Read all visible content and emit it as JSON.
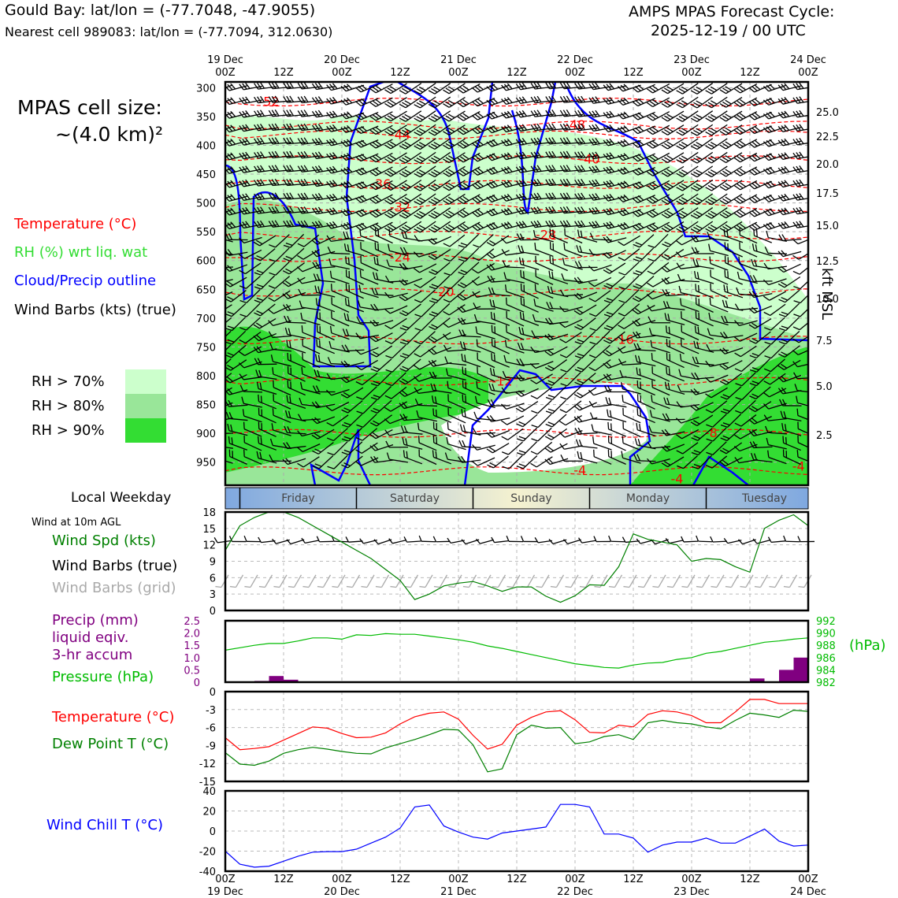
{
  "header": {
    "station_title": "Gould Bay: lat/lon = (-77.7048, -47.9055)",
    "nearest_cell": "Nearest cell 989083: lat/lon = (-77.7094, 312.0630)",
    "cycle_title": "AMPS MPAS Forecast Cycle:",
    "cycle_time": "2025-12-19 / 00 UTC"
  },
  "legend": {
    "cell_size_label": "MPAS cell size:",
    "cell_size_value": "~(4.0 km)²",
    "temperature": "Temperature (°C)",
    "rh": "RH (%) wrt liq. wat",
    "cloud": "Cloud/Precip outline",
    "barbs": "Wind Barbs (kts) (true)",
    "rh70": "RH > 70%",
    "rh80": "RH > 80%",
    "rh90": "RH > 90%",
    "local_weekday": "Local Weekday",
    "wind_10m": "Wind at 10m AGL",
    "wind_spd": "Wind Spd (kts)",
    "wind_barbs_true": "Wind Barbs (true)",
    "wind_barbs_grid": "Wind Barbs (grid)",
    "precip_1": "Precip (mm)",
    "precip_2": "liquid eqiv.",
    "precip_3": "3-hr accum",
    "pressure": "Pressure (hPa)",
    "pressure_unit": "(hPa)",
    "temp2": "Temperature (°C)",
    "dewpoint": "Dew Point T (°C)",
    "windchill": "Wind Chill T (°C)",
    "kft": "kft MSL"
  },
  "colors": {
    "rh70": "#ccffcc",
    "rh80": "#99e699",
    "rh90": "#33dd33",
    "temp": "#ff0000",
    "dew": "#008000",
    "cloud": "#0000ff",
    "precip": "#800080",
    "windchill": "#0000ff",
    "wind": "#008000"
  },
  "chart_data": [
    {
      "type": "time-height cross section",
      "x_top_ticks": [
        {
          "t": 0,
          "label": "19 Dec\n00Z"
        },
        {
          "t": 12,
          "label": "12Z"
        },
        {
          "t": 24,
          "label": "20 Dec\n00Z"
        },
        {
          "t": 36,
          "label": "12Z"
        },
        {
          "t": 48,
          "label": "21 Dec\n00Z"
        },
        {
          "t": 60,
          "label": "12Z"
        },
        {
          "t": 72,
          "label": "22 Dec\n00Z"
        },
        {
          "t": 84,
          "label": "12Z"
        },
        {
          "t": 96,
          "label": "23 Dec\n00Z"
        },
        {
          "t": 108,
          "label": "12Z"
        },
        {
          "t": 120,
          "label": "24 Dec\n00Z"
        }
      ],
      "pressure_levels": [
        300,
        350,
        400,
        450,
        500,
        550,
        600,
        650,
        700,
        750,
        800,
        850,
        900,
        950
      ],
      "height_ticks_kft": [
        "25.0",
        "22.5",
        "20.0",
        "17.5",
        "15.0",
        "12.5",
        "10.0",
        "7.5",
        "5.0",
        "2.5"
      ],
      "temperature_contours": [
        {
          "label": "-52",
          "t": 9,
          "p": 325
        },
        {
          "label": "-48",
          "t": 72,
          "p": 365
        },
        {
          "label": "-44",
          "t": 36,
          "p": 382
        },
        {
          "label": "-40",
          "t": 75,
          "p": 425
        },
        {
          "label": "-36",
          "t": 32,
          "p": 468
        },
        {
          "label": "-32",
          "t": 36,
          "p": 508
        },
        {
          "label": "-28",
          "t": 66,
          "p": 556
        },
        {
          "label": "-24",
          "t": 36,
          "p": 595
        },
        {
          "label": "-20",
          "t": 45,
          "p": 655
        },
        {
          "label": "-16",
          "t": 82,
          "p": 738
        },
        {
          "label": "-12",
          "t": 57,
          "p": 810
        },
        {
          "label": "-8",
          "t": 100,
          "p": 900
        },
        {
          "label": "-4",
          "t": 73,
          "p": 965
        },
        {
          "label": "-4",
          "t": 118,
          "p": 958
        },
        {
          "label": "-4",
          "t": 93,
          "p": 980
        }
      ],
      "weekdays": [
        "Friday",
        "Saturday",
        "Sunday",
        "Monday",
        "Tuesday"
      ]
    },
    {
      "type": "line",
      "title": "Wind at 10m AGL",
      "ylim": [
        0,
        18
      ],
      "yticks": [
        "0",
        "3",
        "6",
        "9",
        "12",
        "15",
        "18"
      ],
      "x_hours": [
        0,
        3,
        6,
        9,
        12,
        15,
        18,
        21,
        24,
        27,
        30,
        33,
        36,
        39,
        42,
        45,
        48,
        51,
        54,
        57,
        60,
        63,
        66,
        69,
        72,
        75,
        78,
        81,
        84,
        87,
        90,
        93,
        96,
        99,
        102,
        105,
        108,
        111,
        114,
        117,
        120
      ],
      "series": [
        {
          "name": "Wind Spd (kts)",
          "values": [
            11,
            15.5,
            17,
            18,
            18,
            17,
            15.5,
            14,
            12.5,
            11,
            9.5,
            7.5,
            5.5,
            2,
            3,
            4.5,
            5,
            5.3,
            4.5,
            3.5,
            4.3,
            4.3,
            2.6,
            1.5,
            2.7,
            4.7,
            4.6,
            8,
            14,
            13,
            12.5,
            12,
            9,
            9.5,
            9.3,
            8,
            7,
            15,
            16.5,
            17.5,
            15.5
          ]
        }
      ]
    },
    {
      "type": "bar+line",
      "precip_ylim": [
        0,
        2.5
      ],
      "precip_yticks": [
        "0",
        "0.5",
        "1.0",
        "1.5",
        "2.0",
        "2.5"
      ],
      "pressure_ylim": [
        982,
        992
      ],
      "pressure_yticks": [
        "982",
        "984",
        "986",
        "988",
        "990",
        "992"
      ],
      "x_hours": [
        0,
        3,
        6,
        9,
        12,
        15,
        18,
        21,
        24,
        27,
        30,
        33,
        36,
        39,
        42,
        45,
        48,
        51,
        54,
        57,
        60,
        63,
        66,
        69,
        72,
        75,
        78,
        81,
        84,
        87,
        90,
        93,
        96,
        99,
        102,
        105,
        108,
        111,
        114,
        117,
        120
      ],
      "series": [
        {
          "name": "Pressure (hPa)",
          "values": [
            987.2,
            987.6,
            988,
            988.3,
            988.3,
            988.7,
            989.2,
            989.2,
            989,
            989.7,
            989.6,
            989.9,
            989.8,
            989.8,
            989.5,
            989.2,
            988.9,
            988.5,
            987.9,
            987.5,
            987,
            986.5,
            986,
            985.5,
            985,
            984.7,
            984.4,
            984.3,
            984.8,
            985.1,
            985.2,
            985.7,
            986,
            986.7,
            987,
            987.5,
            988,
            988.5,
            988.7,
            989,
            989.2
          ]
        },
        {
          "name": "Precip (mm)",
          "values": [
            0,
            0,
            0,
            0.05,
            0.25,
            0.1,
            0,
            0,
            0,
            0,
            0,
            0,
            0,
            0,
            0,
            0,
            0,
            0,
            0,
            0,
            0,
            0,
            0,
            0,
            0,
            0,
            0,
            0,
            0,
            0,
            0,
            0,
            0,
            0,
            0,
            0,
            0,
            0.15,
            0,
            0.5,
            1.0
          ]
        }
      ]
    },
    {
      "type": "line",
      "ylim": [
        -15,
        0
      ],
      "yticks": [
        "0",
        "-3",
        "-6",
        "-9",
        "-12",
        "-15"
      ],
      "x_hours": [
        0,
        3,
        6,
        9,
        12,
        15,
        18,
        21,
        24,
        27,
        30,
        33,
        36,
        39,
        42,
        45,
        48,
        51,
        54,
        57,
        60,
        63,
        66,
        69,
        72,
        75,
        78,
        81,
        84,
        87,
        90,
        93,
        96,
        99,
        102,
        105,
        108,
        111,
        114,
        117,
        120
      ],
      "series": [
        {
          "name": "Temperature (°C)",
          "values": [
            -7.7,
            -9.7,
            -9.5,
            -9.2,
            -8.1,
            -7,
            -5.9,
            -6.1,
            -7,
            -7.7,
            -7.6,
            -6.9,
            -5.4,
            -4.2,
            -3.6,
            -3.4,
            -4.6,
            -7.3,
            -9.6,
            -8.8,
            -5.6,
            -4.3,
            -3.4,
            -3.2,
            -4.7,
            -6.8,
            -6.9,
            -5.6,
            -5.9,
            -3.8,
            -3.2,
            -3.4,
            -4,
            -5.2,
            -5.2,
            -3.4,
            -1.3,
            -1.3,
            -2,
            -2,
            -2
          ]
        },
        {
          "name": "Dew Point T (°C)",
          "values": [
            -10.2,
            -12.1,
            -12.3,
            -11.6,
            -10.3,
            -9.7,
            -9.3,
            -9.6,
            -10,
            -10.3,
            -10.4,
            -9.4,
            -8.7,
            -8,
            -7.2,
            -6.3,
            -6.4,
            -8.9,
            -13.4,
            -12.9,
            -7.2,
            -5.6,
            -6.1,
            -6,
            -8.7,
            -8.4,
            -7.5,
            -7.2,
            -8,
            -5.2,
            -4.8,
            -5.2,
            -5.4,
            -5.9,
            -6.2,
            -4.8,
            -3.6,
            -3.9,
            -4.3,
            -3.1,
            -3.3
          ]
        }
      ]
    },
    {
      "type": "line",
      "ylim": [
        -40,
        40
      ],
      "yticks": [
        "40",
        "20",
        "0",
        "-20",
        "-40"
      ],
      "x_hours": [
        0,
        3,
        6,
        9,
        12,
        15,
        18,
        21,
        24,
        27,
        30,
        33,
        36,
        39,
        42,
        45,
        48,
        51,
        54,
        57,
        60,
        63,
        66,
        69,
        72,
        75,
        78,
        81,
        84,
        87,
        90,
        93,
        96,
        99,
        102,
        105,
        108,
        111,
        114,
        117,
        120
      ],
      "series": [
        {
          "name": "Wind Chill T (°C)",
          "values": [
            -20,
            -33,
            -36,
            -35,
            -30,
            -25,
            -21,
            -20.5,
            -20.5,
            -18,
            -12,
            -6,
            3,
            24,
            26,
            5,
            -1,
            -6,
            -8,
            -2,
            0,
            2,
            4,
            26.5,
            26.5,
            24,
            -3,
            -3,
            -7,
            -21,
            -14,
            -11,
            -11,
            -7,
            -12,
            -12,
            -5,
            2,
            -10,
            -15,
            -14
          ]
        }
      ],
      "x_bottom_ticks": [
        {
          "t": 0,
          "label": "00Z\n19 Dec"
        },
        {
          "t": 12,
          "label": "12Z"
        },
        {
          "t": 24,
          "label": "00Z\n20 Dec"
        },
        {
          "t": 36,
          "label": "12Z"
        },
        {
          "t": 48,
          "label": "00Z\n21 Dec"
        },
        {
          "t": 60,
          "label": "12Z"
        },
        {
          "t": 72,
          "label": "00Z\n22 Dec"
        },
        {
          "t": 84,
          "label": "12Z"
        },
        {
          "t": 96,
          "label": "00Z\n23 Dec"
        },
        {
          "t": 108,
          "label": "12Z"
        },
        {
          "t": 120,
          "label": "00Z\n24 Dec"
        }
      ]
    }
  ]
}
